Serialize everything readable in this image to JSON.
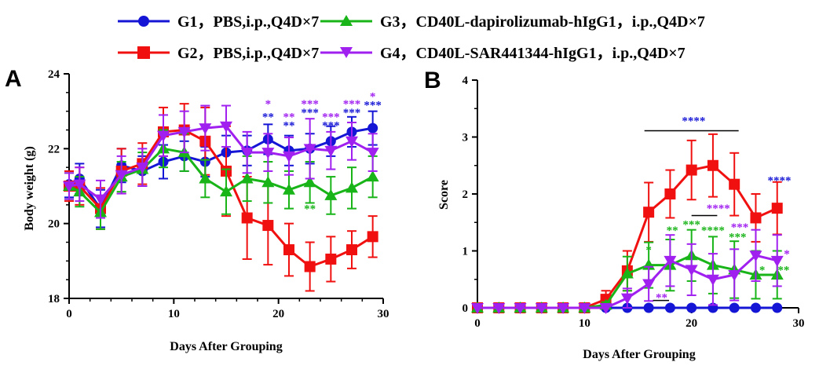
{
  "legend": [
    {
      "label": "G1，PBS,i.p.,Q4D×7",
      "color": "#1515d6",
      "marker": "circle"
    },
    {
      "label": "G2，PBS,i.p.,Q4D×7",
      "color": "#f01010",
      "marker": "square"
    },
    {
      "label": "G3，CD40L-dapirolizumab-hIgG1，i.p.,Q4D×7",
      "color": "#18b418",
      "marker": "triangle-up"
    },
    {
      "label": "G4，CD40L-SAR441344-hIgG1，i.p.,Q4D×7",
      "color": "#a020f0",
      "marker": "triangle-down"
    }
  ],
  "chart_data": [
    {
      "panel": "A",
      "type": "line",
      "xlabel": "Days After Grouping",
      "ylabel": "Body weight (g)",
      "xlim": [
        0,
        30
      ],
      "ylim": [
        18,
        24
      ],
      "xticks": [
        "0",
        "10",
        "20",
        "30"
      ],
      "yticks": [
        "18",
        "20",
        "22",
        "24"
      ],
      "x": [
        0,
        1,
        3,
        5,
        7,
        9,
        11,
        13,
        15,
        17,
        19,
        21,
        23,
        25,
        27,
        29
      ],
      "series": [
        {
          "name": "G1，PBS,i.p.,Q4D×7",
          "color": "#1515d6",
          "marker": "circle",
          "values": [
            21.05,
            21.2,
            20.4,
            21.55,
            21.4,
            21.65,
            21.8,
            21.65,
            21.9,
            21.95,
            22.25,
            21.95,
            22.0,
            22.2,
            22.45,
            22.55
          ],
          "errors": [
            0.35,
            0.4,
            0.5,
            0.45,
            0.4,
            0.45,
            0.4,
            0.4,
            0.45,
            0.4,
            0.4,
            0.4,
            0.4,
            0.4,
            0.4,
            0.45
          ]
        },
        {
          "name": "G2，PBS,i.p.,Q4D×7",
          "color": "#f01010",
          "marker": "square",
          "values": [
            21.0,
            21.0,
            20.4,
            21.4,
            21.6,
            22.45,
            22.5,
            22.2,
            21.4,
            20.15,
            19.95,
            19.3,
            18.85,
            19.05,
            19.3,
            19.65
          ],
          "errors": [
            0.4,
            0.5,
            0.55,
            0.6,
            0.55,
            0.65,
            0.7,
            0.9,
            1.2,
            1.1,
            1.05,
            0.7,
            0.65,
            0.6,
            0.5,
            0.55
          ]
        },
        {
          "name": "G3，CD40L-dapirolizumab-hIgG1，i.p.,Q4D×7",
          "color": "#18b418",
          "marker": "triangle-up",
          "values": [
            21.0,
            20.85,
            20.3,
            21.25,
            21.45,
            22.0,
            21.9,
            21.2,
            20.85,
            21.2,
            21.1,
            20.9,
            21.1,
            20.75,
            20.95,
            21.25
          ],
          "errors": [
            0.35,
            0.4,
            0.45,
            0.4,
            0.45,
            0.5,
            0.5,
            0.5,
            0.6,
            0.6,
            0.55,
            0.5,
            0.55,
            0.5,
            0.55,
            0.55
          ]
        },
        {
          "name": "G4，CD40L-SAR441344-hIgG1，i.p.,Q4D×7",
          "color": "#a020f0",
          "marker": "triangle-down",
          "values": [
            21.0,
            21.05,
            20.65,
            21.3,
            21.5,
            22.35,
            22.45,
            22.55,
            22.6,
            21.9,
            21.9,
            21.8,
            22.0,
            21.95,
            22.2,
            21.9
          ],
          "errors": [
            0.35,
            0.45,
            0.5,
            0.5,
            0.5,
            0.55,
            0.55,
            0.6,
            0.55,
            0.55,
            0.5,
            0.5,
            0.8,
            0.5,
            0.5,
            0.5
          ]
        }
      ],
      "annotations": [
        {
          "x": 19,
          "y": 23.1,
          "text": "*",
          "color": "#a020f0"
        },
        {
          "x": 19,
          "y": 22.75,
          "text": "**",
          "color": "#1515d6"
        },
        {
          "x": 21,
          "y": 22.75,
          "text": "**",
          "color": "#a020f0"
        },
        {
          "x": 21,
          "y": 22.52,
          "text": "**",
          "color": "#1515d6"
        },
        {
          "x": 23,
          "y": 23.1,
          "text": "***",
          "color": "#a020f0"
        },
        {
          "x": 23,
          "y": 22.87,
          "text": "***",
          "color": "#1515d6"
        },
        {
          "x": 25,
          "y": 22.75,
          "text": "***",
          "color": "#a020f0"
        },
        {
          "x": 25,
          "y": 22.52,
          "text": "***",
          "color": "#1515d6"
        },
        {
          "x": 27,
          "y": 23.1,
          "text": "***",
          "color": "#a020f0"
        },
        {
          "x": 27,
          "y": 22.87,
          "text": "***",
          "color": "#1515d6"
        },
        {
          "x": 29,
          "y": 23.3,
          "text": "*",
          "color": "#a020f0"
        },
        {
          "x": 29,
          "y": 23.07,
          "text": "***",
          "color": "#1515d6"
        },
        {
          "x": 23,
          "y": 20.3,
          "text": "**",
          "color": "#18b418"
        }
      ]
    },
    {
      "panel": "B",
      "type": "line",
      "xlabel": "Days After Grouping",
      "ylabel": "Score",
      "xlim": [
        0,
        30
      ],
      "ylim": [
        0,
        4
      ],
      "xticks": [
        "0",
        "10",
        "20",
        "30"
      ],
      "yticks": [
        "0",
        "1",
        "2",
        "3",
        "4"
      ],
      "x": [
        0,
        2,
        4,
        6,
        8,
        10,
        12,
        14,
        16,
        18,
        20,
        22,
        24,
        26,
        28
      ],
      "series": [
        {
          "name": "G1，PBS,i.p.,Q4D×7",
          "color": "#1515d6",
          "marker": "circle",
          "values": [
            0,
            0,
            0,
            0,
            0,
            0,
            0,
            0,
            0,
            0,
            0,
            0,
            0,
            0,
            0
          ],
          "errors": [
            0,
            0,
            0,
            0,
            0,
            0,
            0,
            0,
            0,
            0,
            0,
            0,
            0,
            0,
            0
          ]
        },
        {
          "name": "G2，PBS,i.p.,Q4D×7",
          "color": "#f01010",
          "marker": "square",
          "values": [
            0,
            0,
            0,
            0,
            0,
            0,
            0.15,
            0.65,
            1.68,
            2.0,
            2.42,
            2.5,
            2.17,
            1.58,
            1.75
          ],
          "errors": [
            0,
            0,
            0,
            0,
            0,
            0,
            0.15,
            0.35,
            0.52,
            0.42,
            0.52,
            0.55,
            0.55,
            0.42,
            0.46
          ]
        },
        {
          "name": "G3，CD40L-dapirolizumab-hIgG1，i.p.,Q4D×7",
          "color": "#18b418",
          "marker": "triangle-up",
          "values": [
            0,
            0,
            0,
            0,
            0,
            0,
            0.05,
            0.6,
            0.75,
            0.75,
            0.92,
            0.75,
            0.67,
            0.58,
            0.58
          ],
          "errors": [
            0,
            0,
            0,
            0,
            0,
            0,
            0.05,
            0.3,
            0.4,
            0.45,
            0.45,
            0.5,
            0.5,
            0.42,
            0.42
          ]
        },
        {
          "name": "G4，CD40L-SAR441344-hIgG1，i.p.,Q4D×7",
          "color": "#a020f0",
          "marker": "triangle-down",
          "values": [
            0,
            0,
            0,
            0,
            0,
            0,
            0,
            0.17,
            0.42,
            0.83,
            0.67,
            0.5,
            0.58,
            0.92,
            0.83
          ],
          "errors": [
            0,
            0,
            0,
            0,
            0,
            0,
            0,
            0.17,
            0.3,
            0.45,
            0.45,
            0.45,
            0.45,
            0.45,
            0.45
          ]
        }
      ],
      "annotations": [
        {
          "x": 20.2,
          "y": 3.22,
          "text": "****",
          "color": "#1515d6"
        },
        {
          "x": 22.5,
          "y": 1.68,
          "text": "****",
          "color": "#a020f0"
        },
        {
          "x": 28.2,
          "y": 2.17,
          "text": "****",
          "color": "#1515d6"
        },
        {
          "x": 16,
          "y": 0.95,
          "text": "*",
          "color": "#18b418"
        },
        {
          "x": 18.2,
          "y": 1.3,
          "text": "**",
          "color": "#18b418"
        },
        {
          "x": 20,
          "y": 1.4,
          "text": "***",
          "color": "#18b418"
        },
        {
          "x": 22,
          "y": 1.3,
          "text": "****",
          "color": "#18b418"
        },
        {
          "x": 24.3,
          "y": 1.18,
          "text": "***",
          "color": "#18b418"
        },
        {
          "x": 24.5,
          "y": 1.35,
          "text": "***",
          "color": "#a020f0"
        },
        {
          "x": 26.6,
          "y": 0.6,
          "text": "*",
          "color": "#18b418"
        },
        {
          "x": 28.6,
          "y": 0.6,
          "text": "**",
          "color": "#18b418"
        },
        {
          "x": 28.9,
          "y": 0.88,
          "text": "*",
          "color": "#a020f0"
        },
        {
          "x": 17.2,
          "y": 0.12,
          "text": "**",
          "color": "#a020f0"
        }
      ],
      "brackets": [
        {
          "x1": 15.6,
          "x2": 24.4,
          "y": 3.11,
          "color": "#000000"
        },
        {
          "x1": 20.0,
          "x2": 22.4,
          "y": 1.62,
          "color": "#000000"
        },
        {
          "x1": 16.4,
          "x2": 17.9,
          "y": 0.13,
          "color": "#000000"
        }
      ]
    }
  ]
}
